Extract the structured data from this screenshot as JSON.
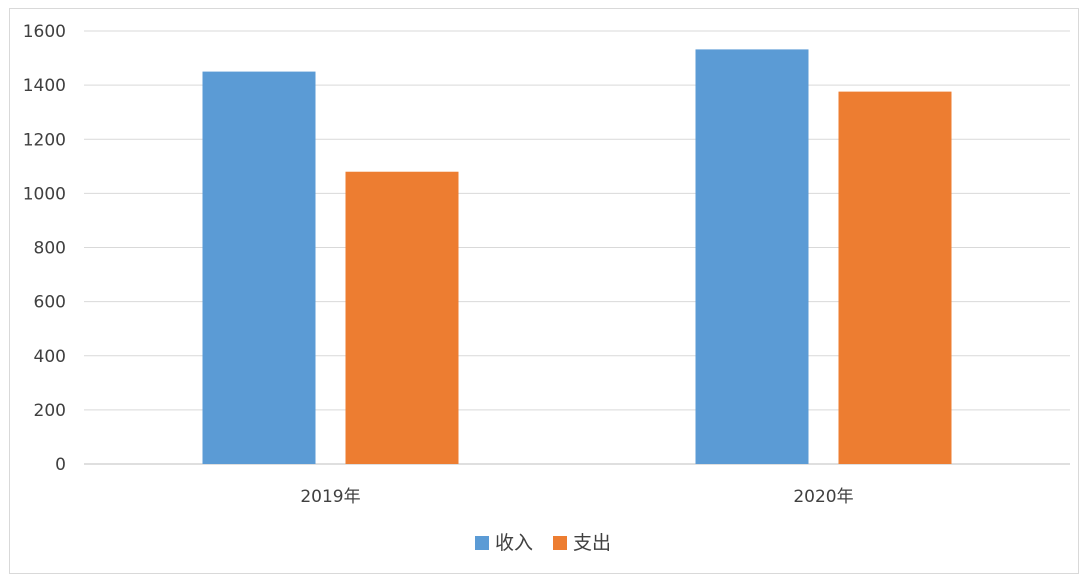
{
  "chart_data": {
    "type": "bar",
    "categories": [
      "2019年",
      "2020年"
    ],
    "series": [
      {
        "name": "收入",
        "values": [
          1450,
          1532
        ],
        "color": "#5b9bd5"
      },
      {
        "name": "支出",
        "values": [
          1080,
          1376
        ],
        "color": "#ed7d31"
      }
    ],
    "ylim": [
      0,
      1600
    ],
    "yticks": [
      0,
      200,
      400,
      600,
      800,
      1000,
      1200,
      1400,
      1600
    ],
    "grid": true,
    "legend_position": "bottom"
  }
}
